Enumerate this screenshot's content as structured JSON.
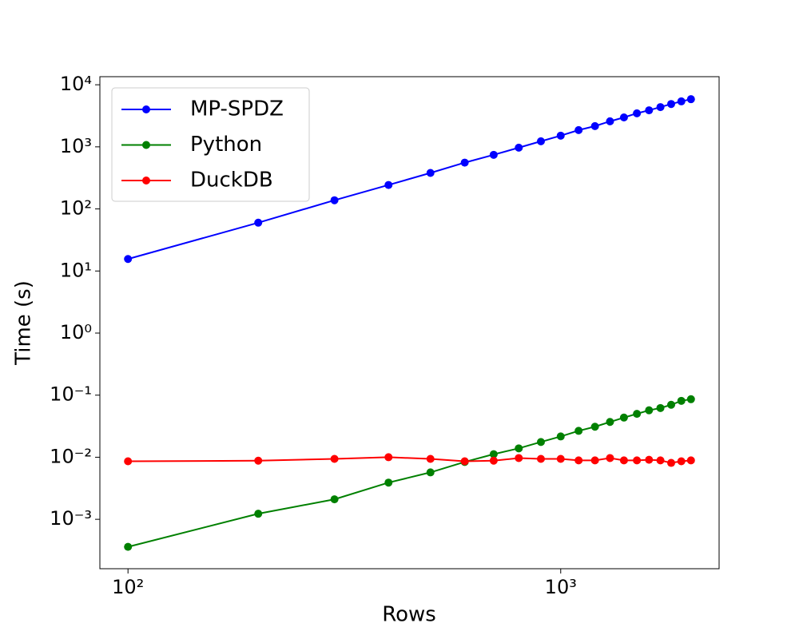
{
  "chart_data": {
    "type": "line",
    "xlabel": "Rows",
    "ylabel": "Time (s)",
    "x": [
      100,
      200,
      300,
      400,
      500,
      600,
      700,
      800,
      900,
      1000,
      1100,
      1200,
      1300,
      1400,
      1500,
      1600,
      1700,
      1800,
      1900,
      2000
    ],
    "series": [
      {
        "name": "MP-SPDZ",
        "color": "#0000ff",
        "values": [
          15.6,
          60,
          138,
          243,
          380,
          557,
          744,
          970,
          1230,
          1515,
          1860,
          2160,
          2580,
          2980,
          3470,
          3880,
          4370,
          4900,
          5400,
          5860
        ]
      },
      {
        "name": "Python",
        "color": "#008000",
        "values": [
          0.00036,
          0.00123,
          0.0021,
          0.0039,
          0.0057,
          0.0084,
          0.0112,
          0.0139,
          0.0176,
          0.0216,
          0.0266,
          0.031,
          0.037,
          0.0435,
          0.05,
          0.057,
          0.062,
          0.07,
          0.081,
          0.086
        ]
      },
      {
        "name": "DuckDB",
        "color": "#ff0000",
        "values": [
          0.0086,
          0.0088,
          0.0094,
          0.01,
          0.0094,
          0.0086,
          0.0088,
          0.0097,
          0.0094,
          0.0094,
          0.0089,
          0.0089,
          0.0097,
          0.0089,
          0.0089,
          0.0091,
          0.0089,
          0.0081,
          0.0086,
          0.0089
        ]
      }
    ],
    "xlog": true,
    "ylog": true,
    "xlim": [
      86.1,
      2323
    ],
    "ylim": [
      0.00016,
      13500
    ],
    "xticks": [
      {
        "value": 100,
        "label": "10²"
      },
      {
        "value": 1000,
        "label": "10³"
      }
    ],
    "yticks": [
      {
        "value": 0.001,
        "label": "10⁻³"
      },
      {
        "value": 0.01,
        "label": "10⁻²"
      },
      {
        "value": 0.1,
        "label": "10⁻¹"
      },
      {
        "value": 1,
        "label": "10⁰"
      },
      {
        "value": 10,
        "label": "10¹"
      },
      {
        "value": 100,
        "label": "10²"
      },
      {
        "value": 1000,
        "label": "10³"
      },
      {
        "value": 10000,
        "label": "10⁴"
      }
    ],
    "legend": "upper left",
    "grid": false
  }
}
